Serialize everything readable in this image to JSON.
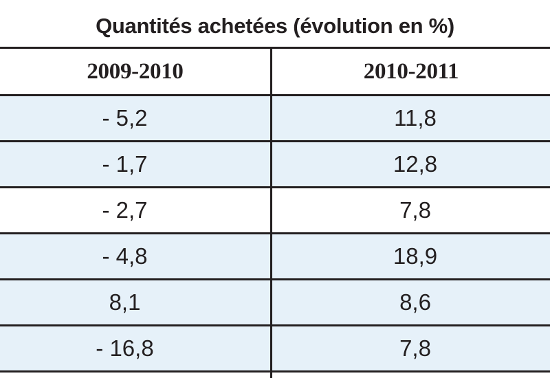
{
  "table": {
    "title": "Quantités achetées (évolution en %)",
    "headers": [
      "2009-2010",
      "2010-2011"
    ],
    "rows": [
      {
        "col1": "- 5,2",
        "col2": "11,8",
        "shaded": true
      },
      {
        "col1": "- 1,7",
        "col2": "12,8",
        "shaded": true
      },
      {
        "col1": "- 2,7",
        "col2": "7,8",
        "shaded": false
      },
      {
        "col1": "- 4,8",
        "col2": "18,9",
        "shaded": true
      },
      {
        "col1": "8,1",
        "col2": "8,6",
        "shaded": true
      },
      {
        "col1": "- 16,8",
        "col2": "7,8",
        "shaded": true
      }
    ]
  },
  "colors": {
    "row_shade": "#e6f1f9",
    "rule": "#231f20",
    "text": "#231f20"
  }
}
